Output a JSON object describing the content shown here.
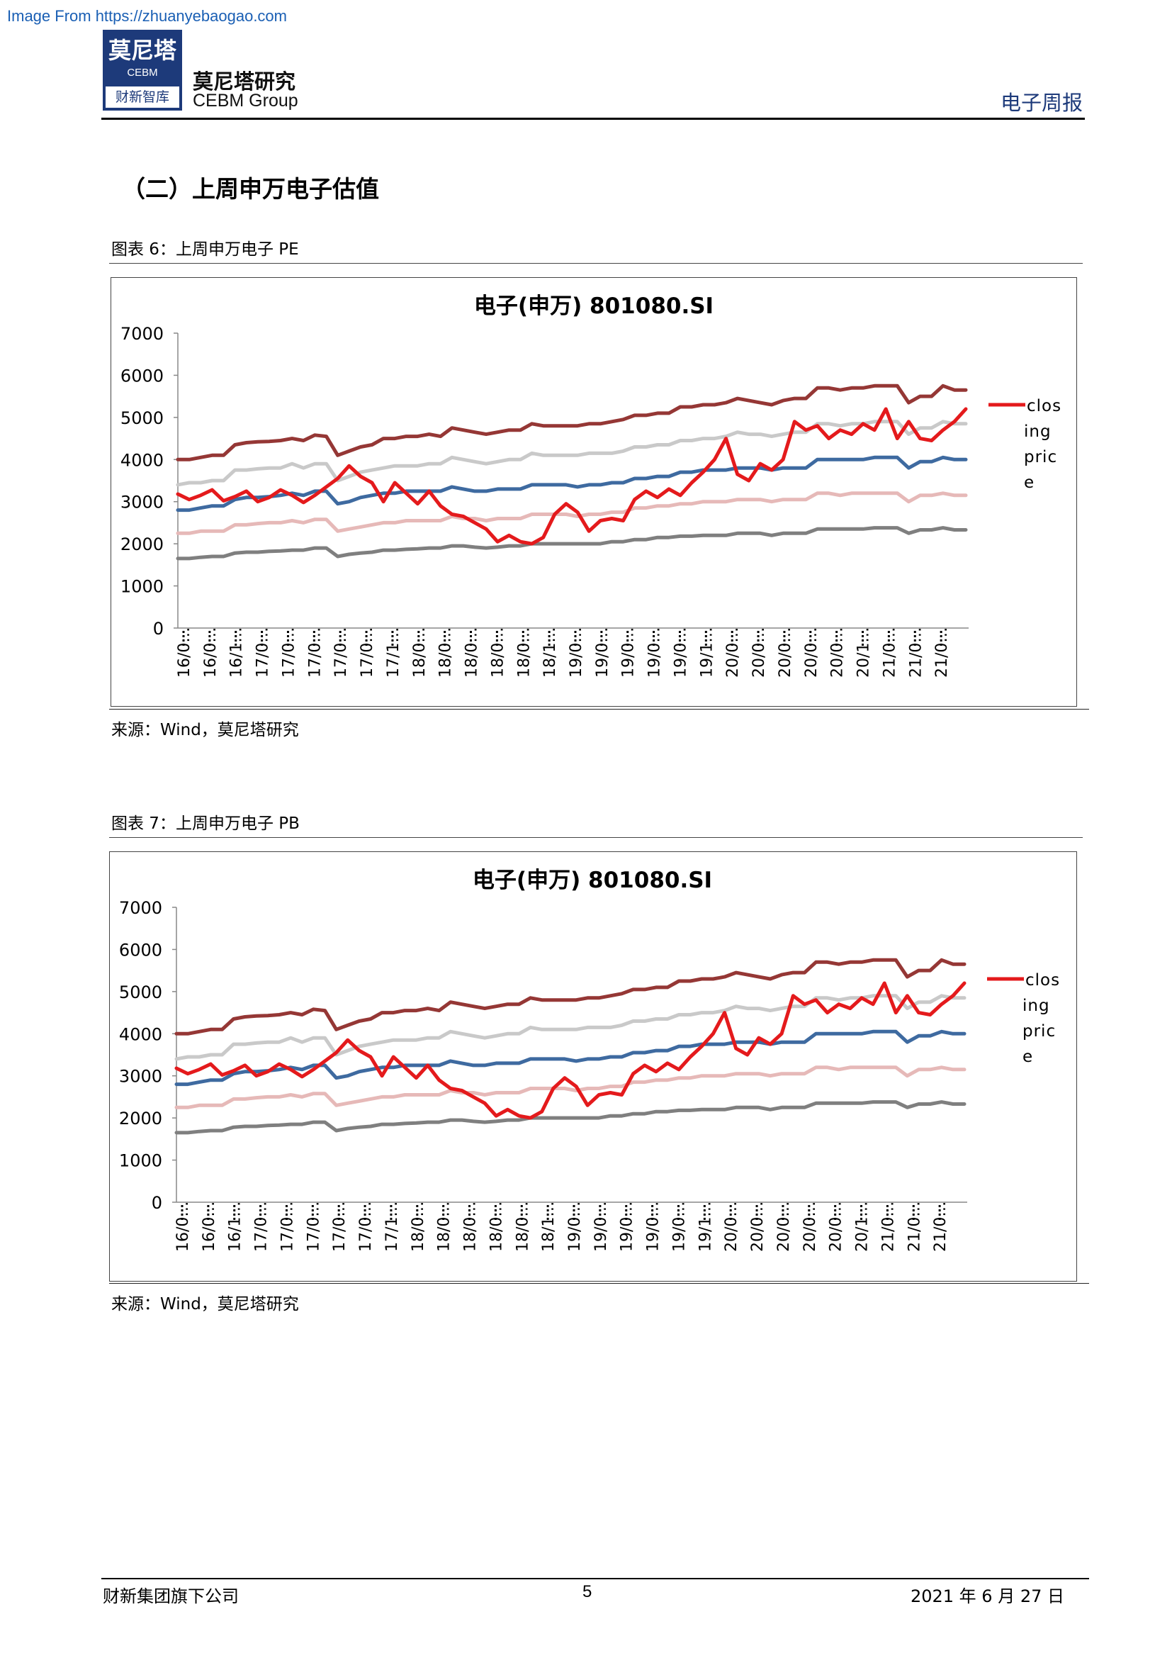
{
  "watermark": "Image From https://zhuanyebaogao.com",
  "header": {
    "logo_cn": "莫尼塔",
    "logo_en": "CEBM",
    "logo_bottom": "财新智库",
    "company_cn": "莫尼塔研究",
    "company_en": "CEBM Group",
    "report_type": "电子周报"
  },
  "section_title": "（二）上周申万电子估值",
  "figures": [
    {
      "caption": "图表 6：上周申万电子 PE",
      "source": "来源：Wind，莫尼塔研究"
    },
    {
      "caption": "图表 7：上周申万电子 PB",
      "source": "来源：Wind，莫尼塔研究"
    }
  ],
  "footer": {
    "left": "财新集团旗下公司",
    "page": "5",
    "date": "2021 年 6 月 27 日"
  },
  "colors": {
    "closing": "#e41a1c",
    "band_top": "#953735",
    "band_upper": "#c9c9c9",
    "band_mid": "#3e6aa0",
    "band_lower": "#e6b9b8",
    "band_bottom": "#7f7f7f",
    "brand": "#1d3a7a"
  },
  "chart_data": [
    {
      "type": "line",
      "title": "电子(申万) 801080.SI",
      "ylim": [
        0,
        7000
      ],
      "yticks": [
        0,
        1000,
        2000,
        3000,
        4000,
        5000,
        6000,
        7000
      ],
      "xtick_labels": [
        "16/0…",
        "16/0…",
        "16/1…",
        "17/0…",
        "17/0…",
        "17/0…",
        "17/0…",
        "17/0…",
        "17/1…",
        "18/0…",
        "18/0…",
        "18/0…",
        "18/0…",
        "18/0…",
        "18/1…",
        "19/0…",
        "19/0…",
        "19/0…",
        "19/0…",
        "19/0…",
        "19/1…",
        "20/0…",
        "20/0…",
        "20/0…",
        "20/0…",
        "20/0…",
        "20/1…",
        "21/0…",
        "21/0…",
        "21/0…"
      ],
      "legend": [
        "clos",
        "ing",
        "pric",
        "e"
      ],
      "legend_position": "right",
      "grid": false,
      "series": [
        {
          "name": "closing price",
          "color": "#e41a1c",
          "width": 5,
          "values": [
            3180,
            3050,
            3150,
            3280,
            3020,
            3120,
            3250,
            3000,
            3100,
            3280,
            3150,
            2980,
            3150,
            3350,
            3550,
            3850,
            3600,
            3450,
            3000,
            3450,
            3200,
            2950,
            3250,
            2900,
            2700,
            2650,
            2500,
            2350,
            2050,
            2200,
            2050,
            2000,
            2150,
            2700,
            2950,
            2750,
            2300,
            2550,
            2600,
            2550,
            3050,
            3250,
            3100,
            3300,
            3150,
            3450,
            3700,
            4000,
            4500,
            3650,
            3500,
            3900,
            3750,
            4000,
            4900,
            4700,
            4800,
            4500,
            4700,
            4600,
            4850,
            4700,
            5200,
            4500,
            4900,
            4500,
            4450,
            4700,
            4900,
            5200
          ]
        },
        {
          "name": "",
          "color": "#953735",
          "width": 5,
          "values": [
            4000,
            4000,
            4050,
            4100,
            4100,
            4350,
            4400,
            4420,
            4430,
            4450,
            4500,
            4450,
            4580,
            4550,
            4100,
            4200,
            4300,
            4350,
            4500,
            4500,
            4550,
            4550,
            4600,
            4550,
            4750,
            4700,
            4650,
            4600,
            4650,
            4700,
            4700,
            4850,
            4800,
            4800,
            4800,
            4800,
            4850,
            4850,
            4900,
            4950,
            5050,
            5050,
            5100,
            5100,
            5250,
            5250,
            5300,
            5300,
            5350,
            5450,
            5400,
            5350,
            5300,
            5400,
            5450,
            5450,
            5700,
            5700,
            5650,
            5700,
            5700,
            5750,
            5750,
            5750,
            5350,
            5500,
            5500,
            5750,
            5650,
            5650
          ]
        },
        {
          "name": "",
          "color": "#c9c9c9",
          "width": 5,
          "values": [
            3400,
            3450,
            3450,
            3500,
            3500,
            3750,
            3750,
            3780,
            3800,
            3800,
            3900,
            3800,
            3900,
            3900,
            3500,
            3600,
            3700,
            3750,
            3800,
            3850,
            3850,
            3850,
            3900,
            3900,
            4050,
            4000,
            3950,
            3900,
            3950,
            4000,
            4000,
            4150,
            4100,
            4100,
            4100,
            4100,
            4150,
            4150,
            4150,
            4200,
            4300,
            4300,
            4350,
            4350,
            4450,
            4450,
            4500,
            4500,
            4550,
            4650,
            4600,
            4600,
            4550,
            4600,
            4650,
            4650,
            4850,
            4850,
            4800,
            4850,
            4850,
            4900,
            4900,
            4900,
            4600,
            4750,
            4750,
            4900,
            4850,
            4850
          ]
        },
        {
          "name": "",
          "color": "#3e6aa0",
          "width": 5,
          "values": [
            2800,
            2800,
            2850,
            2900,
            2900,
            3050,
            3100,
            3100,
            3120,
            3150,
            3200,
            3150,
            3250,
            3250,
            2950,
            3000,
            3100,
            3150,
            3200,
            3200,
            3250,
            3250,
            3250,
            3250,
            3350,
            3300,
            3250,
            3250,
            3300,
            3300,
            3300,
            3400,
            3400,
            3400,
            3400,
            3350,
            3400,
            3400,
            3450,
            3450,
            3550,
            3550,
            3600,
            3600,
            3700,
            3700,
            3750,
            3750,
            3750,
            3800,
            3800,
            3800,
            3750,
            3800,
            3800,
            3800,
            4000,
            4000,
            4000,
            4000,
            4000,
            4050,
            4050,
            4050,
            3800,
            3950,
            3950,
            4050,
            4000,
            4000
          ]
        },
        {
          "name": "",
          "color": "#e6b9b8",
          "width": 5,
          "values": [
            2250,
            2250,
            2300,
            2300,
            2300,
            2450,
            2450,
            2480,
            2500,
            2500,
            2550,
            2500,
            2580,
            2580,
            2300,
            2350,
            2400,
            2450,
            2500,
            2500,
            2550,
            2550,
            2550,
            2550,
            2650,
            2600,
            2600,
            2550,
            2600,
            2600,
            2600,
            2700,
            2700,
            2700,
            2700,
            2650,
            2700,
            2700,
            2750,
            2750,
            2850,
            2850,
            2900,
            2900,
            2950,
            2950,
            3000,
            3000,
            3000,
            3050,
            3050,
            3050,
            3000,
            3050,
            3050,
            3050,
            3200,
            3200,
            3150,
            3200,
            3200,
            3200,
            3200,
            3200,
            3000,
            3150,
            3150,
            3200,
            3150,
            3150
          ]
        },
        {
          "name": "",
          "color": "#7f7f7f",
          "width": 5,
          "values": [
            1650,
            1650,
            1680,
            1700,
            1700,
            1780,
            1800,
            1800,
            1820,
            1830,
            1850,
            1850,
            1900,
            1900,
            1700,
            1750,
            1780,
            1800,
            1850,
            1850,
            1870,
            1880,
            1900,
            1900,
            1950,
            1950,
            1920,
            1900,
            1920,
            1950,
            1950,
            2000,
            2000,
            2000,
            2000,
            2000,
            2000,
            2000,
            2050,
            2050,
            2100,
            2100,
            2150,
            2150,
            2180,
            2180,
            2200,
            2200,
            2200,
            2250,
            2250,
            2250,
            2200,
            2250,
            2250,
            2250,
            2350,
            2350,
            2350,
            2350,
            2350,
            2380,
            2380,
            2380,
            2250,
            2330,
            2330,
            2380,
            2330,
            2330
          ]
        }
      ]
    },
    {
      "type": "line",
      "title": "电子(申万) 801080.SI",
      "ylim": [
        0,
        7000
      ],
      "yticks": [
        0,
        1000,
        2000,
        3000,
        4000,
        5000,
        6000,
        7000
      ],
      "xtick_labels": [
        "16/0…",
        "16/0…",
        "16/1…",
        "17/0…",
        "17/0…",
        "17/0…",
        "17/0…",
        "17/0…",
        "17/1…",
        "18/0…",
        "18/0…",
        "18/0…",
        "18/0…",
        "18/0…",
        "18/1…",
        "19/0…",
        "19/0…",
        "19/0…",
        "19/0…",
        "19/0…",
        "19/1…",
        "20/0…",
        "20/0…",
        "20/0…",
        "20/0…",
        "20/0…",
        "20/1…",
        "21/0…",
        "21/0…",
        "21/0…"
      ],
      "legend": [
        "clos",
        "ing",
        "pric",
        "e"
      ],
      "legend_position": "right",
      "grid": false,
      "series": [
        {
          "name": "closing price",
          "color": "#e41a1c",
          "width": 5,
          "values": [
            3180,
            3050,
            3150,
            3280,
            3020,
            3120,
            3250,
            3000,
            3100,
            3280,
            3150,
            2980,
            3150,
            3350,
            3550,
            3850,
            3600,
            3450,
            3000,
            3450,
            3200,
            2950,
            3250,
            2900,
            2700,
            2650,
            2500,
            2350,
            2050,
            2200,
            2050,
            2000,
            2150,
            2700,
            2950,
            2750,
            2300,
            2550,
            2600,
            2550,
            3050,
            3250,
            3100,
            3300,
            3150,
            3450,
            3700,
            4000,
            4500,
            3650,
            3500,
            3900,
            3750,
            4000,
            4900,
            4700,
            4800,
            4500,
            4700,
            4600,
            4850,
            4700,
            5200,
            4500,
            4900,
            4500,
            4450,
            4700,
            4900,
            5200
          ]
        },
        {
          "name": "",
          "color": "#953735",
          "width": 5,
          "values": [
            4000,
            4000,
            4050,
            4100,
            4100,
            4350,
            4400,
            4420,
            4430,
            4450,
            4500,
            4450,
            4580,
            4550,
            4100,
            4200,
            4300,
            4350,
            4500,
            4500,
            4550,
            4550,
            4600,
            4550,
            4750,
            4700,
            4650,
            4600,
            4650,
            4700,
            4700,
            4850,
            4800,
            4800,
            4800,
            4800,
            4850,
            4850,
            4900,
            4950,
            5050,
            5050,
            5100,
            5100,
            5250,
            5250,
            5300,
            5300,
            5350,
            5450,
            5400,
            5350,
            5300,
            5400,
            5450,
            5450,
            5700,
            5700,
            5650,
            5700,
            5700,
            5750,
            5750,
            5750,
            5350,
            5500,
            5500,
            5750,
            5650,
            5650
          ]
        },
        {
          "name": "",
          "color": "#c9c9c9",
          "width": 5,
          "values": [
            3400,
            3450,
            3450,
            3500,
            3500,
            3750,
            3750,
            3780,
            3800,
            3800,
            3900,
            3800,
            3900,
            3900,
            3500,
            3600,
            3700,
            3750,
            3800,
            3850,
            3850,
            3850,
            3900,
            3900,
            4050,
            4000,
            3950,
            3900,
            3950,
            4000,
            4000,
            4150,
            4100,
            4100,
            4100,
            4100,
            4150,
            4150,
            4150,
            4200,
            4300,
            4300,
            4350,
            4350,
            4450,
            4450,
            4500,
            4500,
            4550,
            4650,
            4600,
            4600,
            4550,
            4600,
            4650,
            4650,
            4850,
            4850,
            4800,
            4850,
            4850,
            4900,
            4900,
            4900,
            4600,
            4750,
            4750,
            4900,
            4850,
            4850
          ]
        },
        {
          "name": "",
          "color": "#3e6aa0",
          "width": 5,
          "values": [
            2800,
            2800,
            2850,
            2900,
            2900,
            3050,
            3100,
            3100,
            3120,
            3150,
            3200,
            3150,
            3250,
            3250,
            2950,
            3000,
            3100,
            3150,
            3200,
            3200,
            3250,
            3250,
            3250,
            3250,
            3350,
            3300,
            3250,
            3250,
            3300,
            3300,
            3300,
            3400,
            3400,
            3400,
            3400,
            3350,
            3400,
            3400,
            3450,
            3450,
            3550,
            3550,
            3600,
            3600,
            3700,
            3700,
            3750,
            3750,
            3750,
            3800,
            3800,
            3800,
            3750,
            3800,
            3800,
            3800,
            4000,
            4000,
            4000,
            4000,
            4000,
            4050,
            4050,
            4050,
            3800,
            3950,
            3950,
            4050,
            4000,
            4000
          ]
        },
        {
          "name": "",
          "color": "#e6b9b8",
          "width": 5,
          "values": [
            2250,
            2250,
            2300,
            2300,
            2300,
            2450,
            2450,
            2480,
            2500,
            2500,
            2550,
            2500,
            2580,
            2580,
            2300,
            2350,
            2400,
            2450,
            2500,
            2500,
            2550,
            2550,
            2550,
            2550,
            2650,
            2600,
            2600,
            2550,
            2600,
            2600,
            2600,
            2700,
            2700,
            2700,
            2700,
            2650,
            2700,
            2700,
            2750,
            2750,
            2850,
            2850,
            2900,
            2900,
            2950,
            2950,
            3000,
            3000,
            3000,
            3050,
            3050,
            3050,
            3000,
            3050,
            3050,
            3050,
            3200,
            3200,
            3150,
            3200,
            3200,
            3200,
            3200,
            3200,
            3000,
            3150,
            3150,
            3200,
            3150,
            3150
          ]
        },
        {
          "name": "",
          "color": "#7f7f7f",
          "width": 5,
          "values": [
            1650,
            1650,
            1680,
            1700,
            1700,
            1780,
            1800,
            1800,
            1820,
            1830,
            1850,
            1850,
            1900,
            1900,
            1700,
            1750,
            1780,
            1800,
            1850,
            1850,
            1870,
            1880,
            1900,
            1900,
            1950,
            1950,
            1920,
            1900,
            1920,
            1950,
            1950,
            2000,
            2000,
            2000,
            2000,
            2000,
            2000,
            2000,
            2050,
            2050,
            2100,
            2100,
            2150,
            2150,
            2180,
            2180,
            2200,
            2200,
            2200,
            2250,
            2250,
            2250,
            2200,
            2250,
            2250,
            2250,
            2350,
            2350,
            2350,
            2350,
            2350,
            2380,
            2380,
            2380,
            2250,
            2330,
            2330,
            2380,
            2330,
            2330
          ]
        }
      ]
    }
  ]
}
